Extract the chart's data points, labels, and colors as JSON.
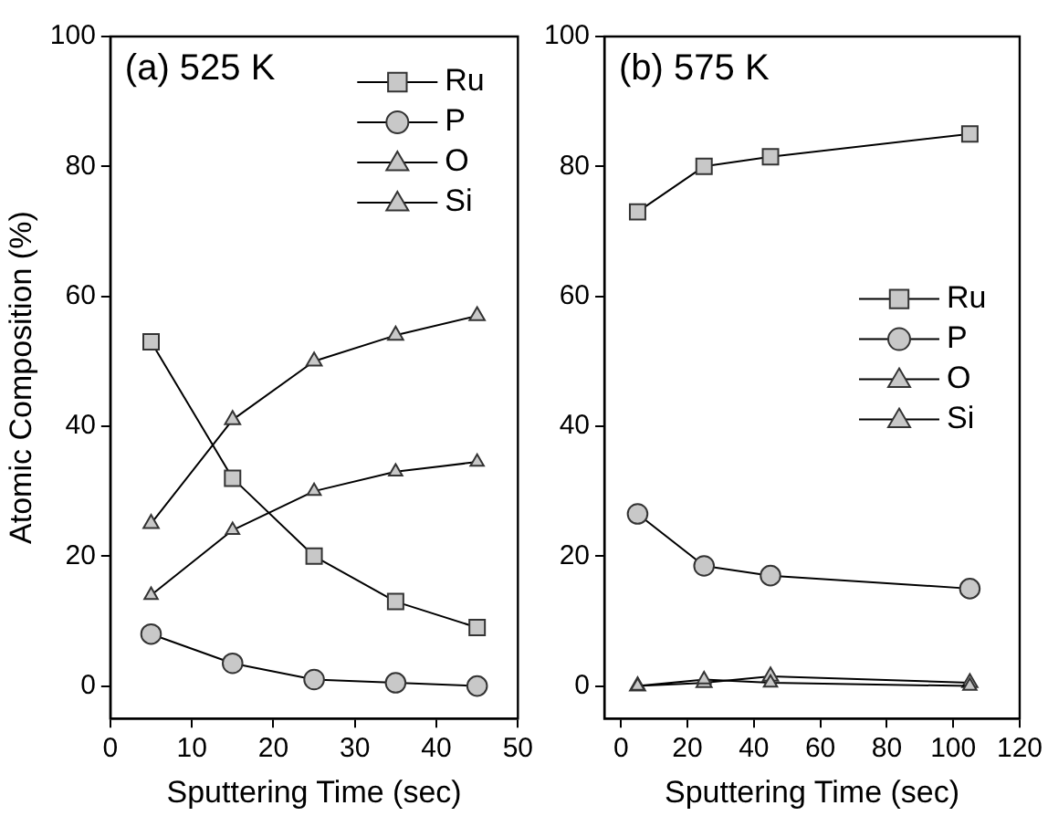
{
  "chart_data": [
    {
      "type": "line",
      "annotations": [
        "(a) 525 K"
      ],
      "xlabel": "Sputtering Time (sec)",
      "ylabel": "Atomic Composition (%)",
      "x": [
        5,
        15,
        25,
        35,
        45
      ],
      "xlim": [
        0,
        50
      ],
      "xticks": [
        0,
        10,
        20,
        30,
        40,
        50
      ],
      "ylim": [
        -5,
        100
      ],
      "yticks": [
        0,
        20,
        40,
        60,
        80,
        100
      ],
      "grid": false,
      "legend": "top right",
      "line_style": "solid",
      "series": [
        {
          "name": "Ru",
          "color": "#c8c8c8",
          "marker": "square",
          "values": [
            53,
            32,
            20,
            13,
            9
          ]
        },
        {
          "name": "P",
          "color": "#c8c8c8",
          "marker": "circle",
          "values": [
            8,
            3.5,
            1,
            0.5,
            0
          ]
        },
        {
          "name": "O",
          "color": "#c8c8c8",
          "marker": "triangle",
          "values": [
            25,
            41,
            50,
            54,
            57
          ]
        },
        {
          "name": "Si",
          "color": "#c8c8c8",
          "marker": "triangle",
          "values": [
            14,
            24,
            30,
            33,
            34.5
          ]
        }
      ]
    },
    {
      "type": "line",
      "annotations": [
        "(b) 575 K"
      ],
      "xlabel": "Sputtering Time (sec)",
      "x": [
        5,
        25,
        45,
        105
      ],
      "xlim": [
        -5,
        120
      ],
      "xticks": [
        0,
        20,
        40,
        60,
        80,
        100,
        120
      ],
      "ylim": [
        -5,
        100
      ],
      "yticks": [
        0,
        20,
        40,
        60,
        80,
        100
      ],
      "grid": false,
      "legend": "right",
      "line_style": "solid",
      "series": [
        {
          "name": "Ru",
          "color": "#c8c8c8",
          "marker": "square",
          "values": [
            73,
            80,
            81.5,
            85
          ]
        },
        {
          "name": "P",
          "color": "#c8c8c8",
          "marker": "circle",
          "values": [
            26.5,
            18.5,
            17,
            15
          ]
        },
        {
          "name": "O",
          "color": "#c8c8c8",
          "marker": "triangle",
          "values": [
            0,
            0.5,
            1.5,
            0.5
          ]
        },
        {
          "name": "Si",
          "color": "#c8c8c8",
          "marker": "triangle",
          "values": [
            0,
            1,
            0.5,
            0
          ]
        }
      ]
    }
  ]
}
